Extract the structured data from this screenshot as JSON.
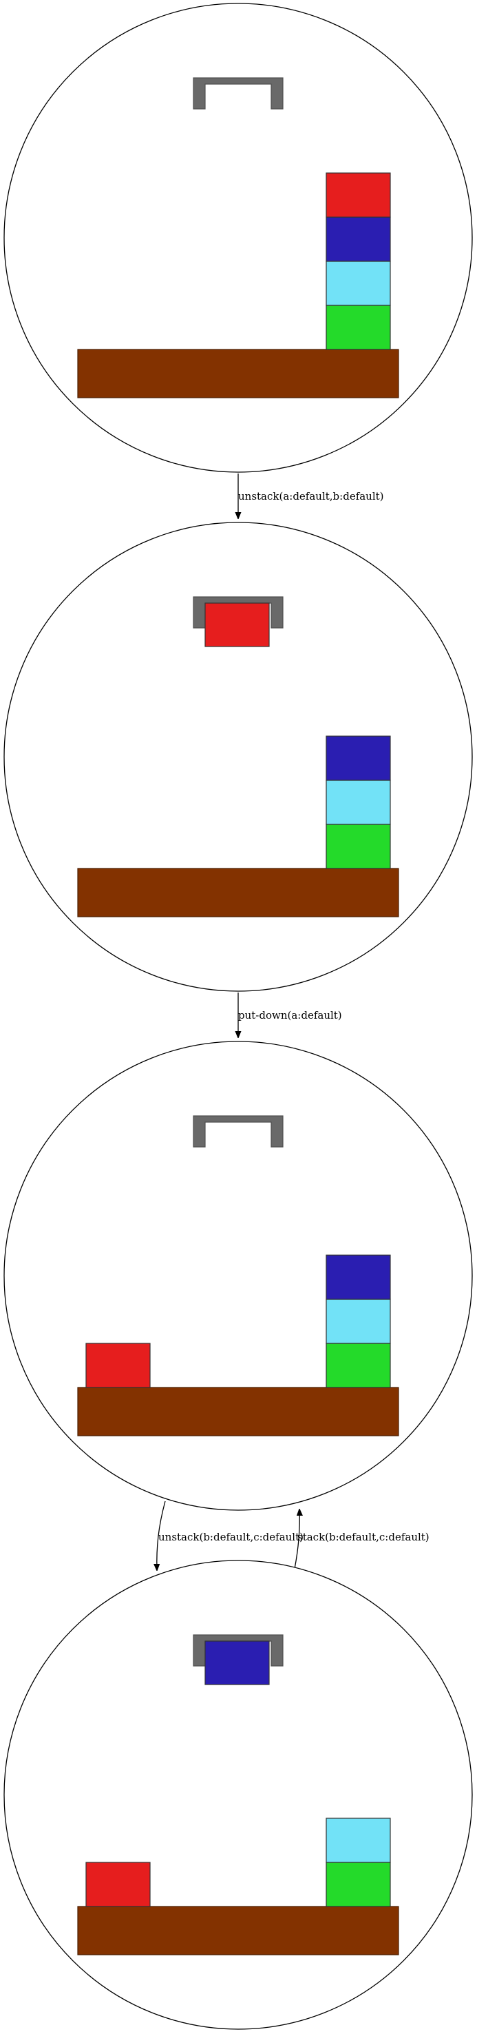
{
  "colors": {
    "a": "#e61e1e",
    "b": "#2a1eb1",
    "c": "#72e2f7",
    "d": "#24da2a",
    "table": "#833200",
    "gripper": "#696969"
  },
  "states": [
    {
      "name": "state-1",
      "holding": null,
      "table_left": [],
      "stack_right": [
        "d",
        "c",
        "b",
        "a"
      ]
    },
    {
      "name": "state-2",
      "holding": "a",
      "table_left": [],
      "stack_right": [
        "d",
        "c",
        "b"
      ]
    },
    {
      "name": "state-3",
      "holding": null,
      "table_left": [
        "a"
      ],
      "stack_right": [
        "d",
        "c",
        "b"
      ]
    },
    {
      "name": "state-4",
      "holding": "b",
      "table_left": [
        "a"
      ],
      "stack_right": [
        "d",
        "c"
      ]
    }
  ],
  "edges": [
    {
      "from": 0,
      "to": 1,
      "label": "unstack(a:default,b:default)"
    },
    {
      "from": 1,
      "to": 2,
      "label": "put-down(a:default)"
    },
    {
      "from": 2,
      "to": 3,
      "label": "unstack(b:default,c:default)"
    },
    {
      "from": 3,
      "to": 2,
      "label": "stack(b:default,c:default)"
    }
  ]
}
